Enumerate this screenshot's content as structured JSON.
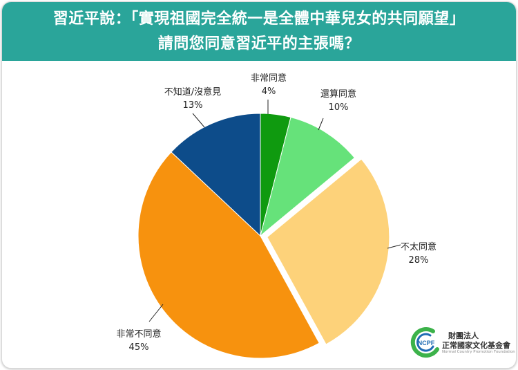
{
  "header": {
    "title_line1": "習近平說：「實現祖國完全統一是全體中華兒女的共同願望」",
    "title_line2": "請問您同意習近平的主張嗎？"
  },
  "chart_data": {
    "type": "pie",
    "title": "習近平說：「實現祖國完全統一是全體中華兒女的共同願望」請問您同意習近平的主張嗎？",
    "slices": [
      {
        "label": "非常同意",
        "value": 4,
        "value_label": "4%",
        "color": "#0f9a0f",
        "exploded": false
      },
      {
        "label": "還算同意",
        "value": 10,
        "value_label": "10%",
        "color": "#66e27a",
        "exploded": false
      },
      {
        "label": "不太同意",
        "value": 28,
        "value_label": "28%",
        "color": "#fdd27a",
        "exploded": true
      },
      {
        "label": "非常不同意",
        "value": 45,
        "value_label": "45%",
        "color": "#f7920e",
        "exploded": false
      },
      {
        "label": "不知道/沒意見",
        "value": 13,
        "value_label": "13%",
        "color": "#0d4c8a",
        "exploded": false
      }
    ],
    "start": "top, clockwise",
    "legend": "none (labels beside slices)"
  },
  "logo": {
    "mark": "NCPF",
    "org_line1": "財團法人",
    "org_line2": "正常國家文化基金會",
    "org_line3": "Normal Country Promotion Foundation",
    "colors": {
      "green": "#3cb24a",
      "blue": "#1f6bb3",
      "orange": "#f28c1c"
    }
  }
}
